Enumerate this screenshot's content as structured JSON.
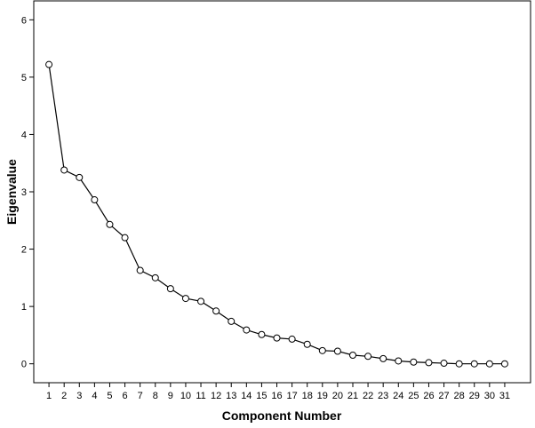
{
  "chart_data": {
    "type": "line",
    "title": "",
    "xlabel": "Component Number",
    "ylabel": "Eigenvalue",
    "x": [
      1,
      2,
      3,
      4,
      5,
      6,
      7,
      8,
      9,
      10,
      11,
      12,
      13,
      14,
      15,
      16,
      17,
      18,
      19,
      20,
      21,
      22,
      23,
      24,
      25,
      26,
      27,
      28,
      29,
      30,
      31
    ],
    "series": [
      {
        "values": [
          5.22,
          3.38,
          3.25,
          2.86,
          2.43,
          2.2,
          1.63,
          1.5,
          1.31,
          1.14,
          1.09,
          0.92,
          0.74,
          0.59,
          0.51,
          0.45,
          0.43,
          0.34,
          0.23,
          0.22,
          0.15,
          0.13,
          0.09,
          0.05,
          0.03,
          0.02,
          0.01,
          0.0,
          0.0,
          0.0,
          0.0
        ]
      }
    ],
    "xticks": [
      "1",
      "2",
      "3",
      "4",
      "5",
      "6",
      "7",
      "8",
      "9",
      "10",
      "11",
      "12",
      "13",
      "14",
      "15",
      "16",
      "17",
      "18",
      "19",
      "20",
      "21",
      "22",
      "23",
      "24",
      "25",
      "26",
      "27",
      "28",
      "29",
      "30",
      "31"
    ],
    "yticks": [
      "0",
      "1",
      "2",
      "3",
      "4",
      "5",
      "6"
    ],
    "ylim": [
      -0.33,
      6.33
    ],
    "xlim": [
      0,
      32.7
    ],
    "grid": false,
    "legend": "none",
    "colors": {
      "line": "#000000",
      "marker_edge": "#000000",
      "marker_fill": "#ffffff",
      "frame": "#000000",
      "background": "#ffffff"
    }
  }
}
